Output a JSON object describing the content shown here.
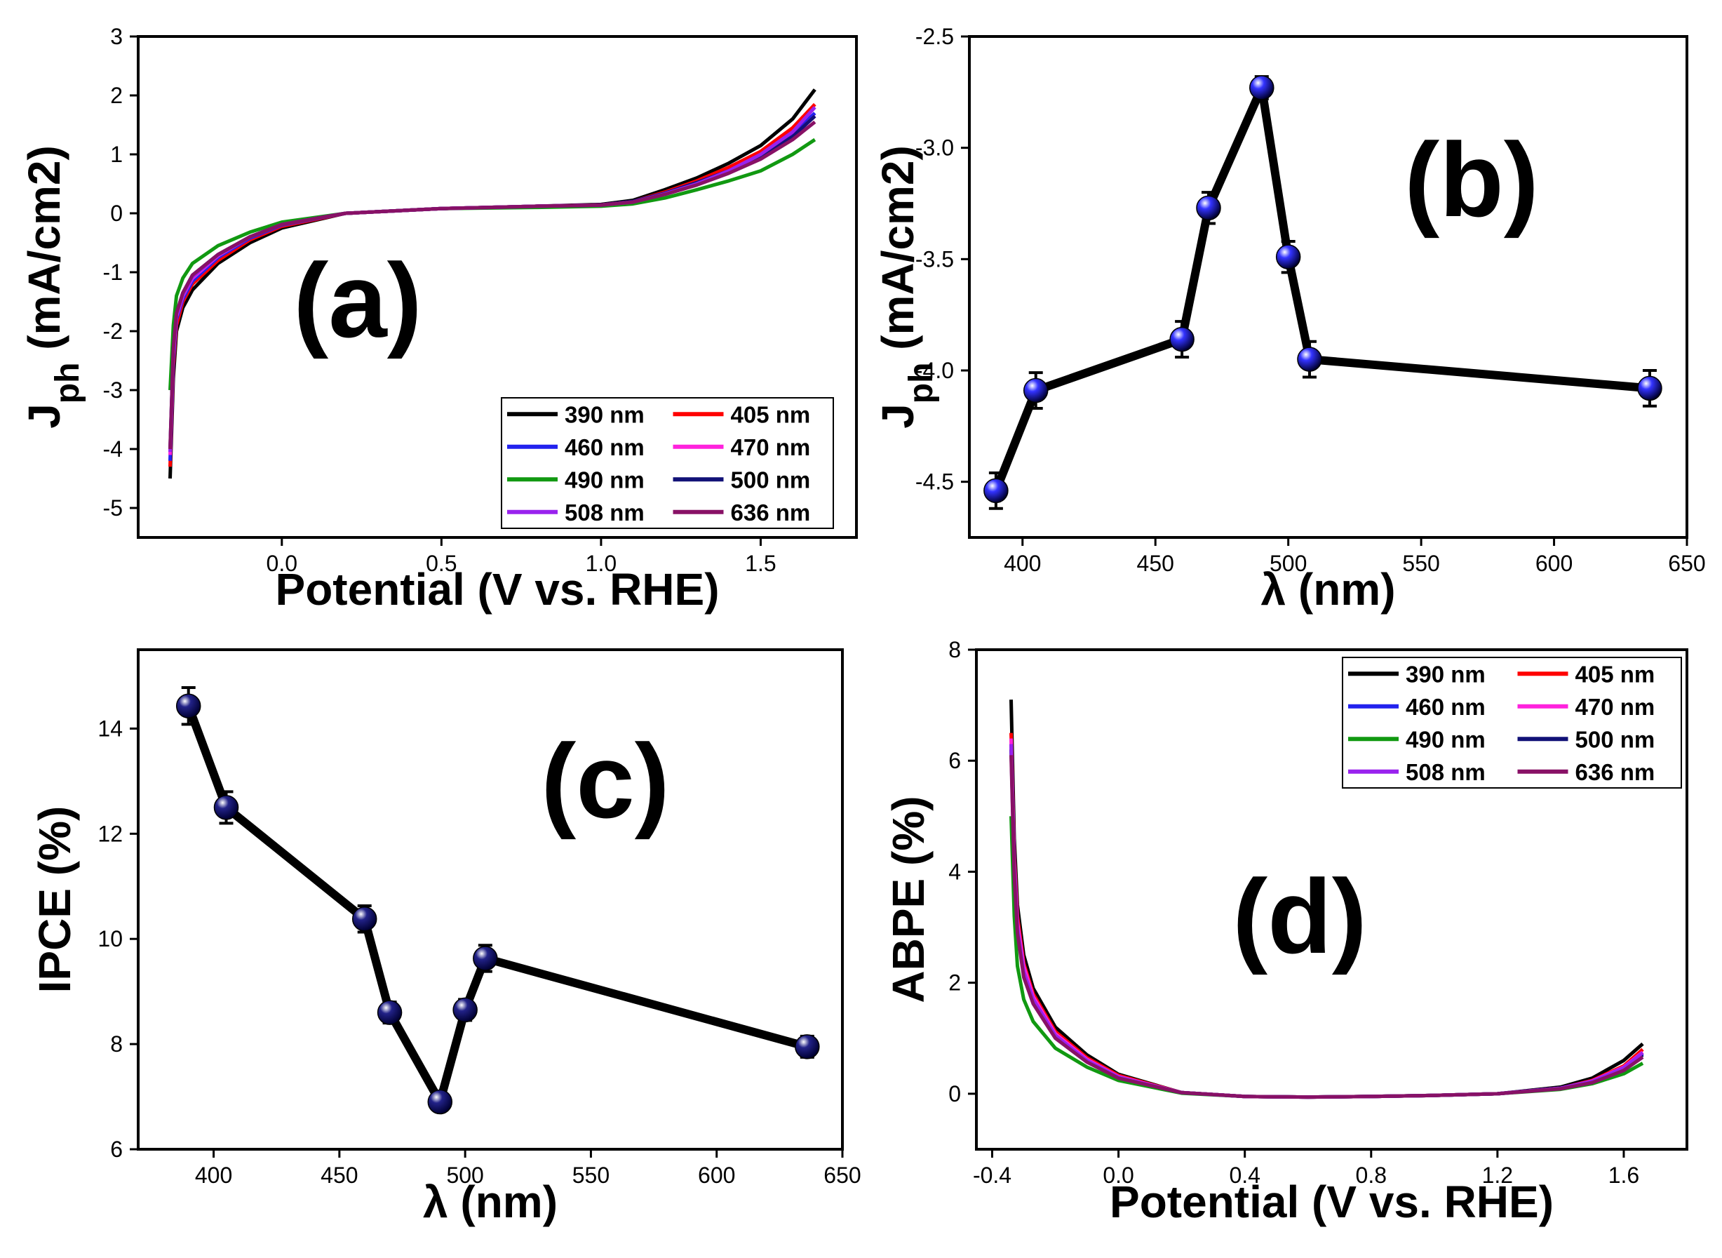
{
  "chart_data": [
    {
      "id": "a",
      "type": "line",
      "panel_label": "(a)",
      "xlabel": "Potential (V vs. RHE)",
      "ylabel_main": "J",
      "ylabel_sub": "ph",
      "ylabel_unit": " (mA/cm2)",
      "xlim": [
        -0.45,
        1.8
      ],
      "ylim": [
        -5.5,
        3
      ],
      "xticks": [
        0.0,
        0.5,
        1.0,
        1.5
      ],
      "xtick_labels": [
        "0.0",
        "0.5",
        "1.0",
        "1.5"
      ],
      "yticks": [
        -5,
        -4,
        -3,
        -2,
        -1,
        0,
        1,
        2,
        3
      ],
      "ytick_labels": [
        "-5",
        "-4",
        "-3",
        "-2",
        "-1",
        "0",
        "1",
        "2",
        "3"
      ],
      "legend_position": "bottom-right",
      "series": [
        {
          "name": "390 nm",
          "color": "#000000",
          "x": [
            -0.35,
            -0.34,
            -0.33,
            -0.31,
            -0.28,
            -0.2,
            -0.1,
            0.0,
            0.2,
            0.5,
            0.8,
            1.0,
            1.1,
            1.2,
            1.3,
            1.4,
            1.5,
            1.6,
            1.67
          ],
          "y": [
            -4.5,
            -2.8,
            -2.0,
            -1.6,
            -1.3,
            -0.85,
            -0.5,
            -0.25,
            0.0,
            0.08,
            0.12,
            0.15,
            0.22,
            0.4,
            0.6,
            0.85,
            1.15,
            1.6,
            2.1
          ]
        },
        {
          "name": "405 nm",
          "color": "#ff0000",
          "x": [
            -0.35,
            -0.34,
            -0.33,
            -0.31,
            -0.28,
            -0.2,
            -0.1,
            0.0,
            0.2,
            0.5,
            0.8,
            1.0,
            1.1,
            1.2,
            1.3,
            1.4,
            1.5,
            1.6,
            1.67
          ],
          "y": [
            -4.3,
            -2.6,
            -1.9,
            -1.5,
            -1.2,
            -0.8,
            -0.45,
            -0.22,
            0.0,
            0.08,
            0.12,
            0.14,
            0.2,
            0.36,
            0.55,
            0.78,
            1.05,
            1.45,
            1.85
          ]
        },
        {
          "name": "460 nm",
          "color": "#2222ee",
          "x": [
            -0.35,
            -0.34,
            -0.33,
            -0.31,
            -0.28,
            -0.2,
            -0.1,
            0.0,
            0.2,
            0.5,
            0.8,
            1.0,
            1.1,
            1.2,
            1.3,
            1.4,
            1.5,
            1.6,
            1.67
          ],
          "y": [
            -4.2,
            -2.5,
            -1.8,
            -1.45,
            -1.15,
            -0.75,
            -0.42,
            -0.2,
            0.0,
            0.08,
            0.12,
            0.14,
            0.2,
            0.34,
            0.52,
            0.72,
            0.98,
            1.35,
            1.7
          ]
        },
        {
          "name": "470 nm",
          "color": "#ff22dd",
          "x": [
            -0.35,
            -0.34,
            -0.33,
            -0.31,
            -0.28,
            -0.2,
            -0.1,
            0.0,
            0.2,
            0.5,
            0.8,
            1.0,
            1.1,
            1.2,
            1.3,
            1.4,
            1.5,
            1.6,
            1.67
          ],
          "y": [
            -4.1,
            -2.4,
            -1.75,
            -1.4,
            -1.1,
            -0.72,
            -0.4,
            -0.19,
            0.0,
            0.08,
            0.12,
            0.14,
            0.19,
            0.33,
            0.5,
            0.7,
            0.95,
            1.3,
            1.65
          ]
        },
        {
          "name": "490 nm",
          "color": "#119911",
          "x": [
            -0.35,
            -0.34,
            -0.33,
            -0.31,
            -0.28,
            -0.2,
            -0.1,
            0.0,
            0.2,
            0.5,
            0.8,
            1.0,
            1.1,
            1.2,
            1.3,
            1.4,
            1.5,
            1.6,
            1.67
          ],
          "y": [
            -3.0,
            -1.9,
            -1.4,
            -1.1,
            -0.85,
            -0.55,
            -0.32,
            -0.15,
            0.0,
            0.08,
            0.1,
            0.12,
            0.16,
            0.26,
            0.4,
            0.55,
            0.72,
            1.0,
            1.25
          ]
        },
        {
          "name": "500 nm",
          "color": "#111177",
          "x": [
            -0.35,
            -0.34,
            -0.33,
            -0.31,
            -0.28,
            -0.2,
            -0.1,
            0.0,
            0.2,
            0.5,
            0.8,
            1.0,
            1.1,
            1.2,
            1.3,
            1.4,
            1.5,
            1.6,
            1.67
          ],
          "y": [
            -4.0,
            -2.3,
            -1.7,
            -1.35,
            -1.05,
            -0.7,
            -0.4,
            -0.19,
            0.0,
            0.08,
            0.12,
            0.14,
            0.2,
            0.34,
            0.52,
            0.72,
            0.98,
            1.3,
            1.65
          ]
        },
        {
          "name": "508 nm",
          "color": "#9922ee",
          "x": [
            -0.35,
            -0.34,
            -0.33,
            -0.31,
            -0.28,
            -0.2,
            -0.1,
            0.0,
            0.2,
            0.5,
            0.8,
            1.0,
            1.1,
            1.2,
            1.3,
            1.4,
            1.5,
            1.6,
            1.67
          ],
          "y": [
            -4.05,
            -2.35,
            -1.72,
            -1.38,
            -1.08,
            -0.71,
            -0.4,
            -0.19,
            0.0,
            0.08,
            0.12,
            0.14,
            0.19,
            0.33,
            0.5,
            0.72,
            1.0,
            1.38,
            1.8
          ]
        },
        {
          "name": "636 nm",
          "color": "#881166",
          "x": [
            -0.35,
            -0.34,
            -0.33,
            -0.31,
            -0.28,
            -0.2,
            -0.1,
            0.0,
            0.2,
            0.5,
            0.8,
            1.0,
            1.1,
            1.2,
            1.3,
            1.4,
            1.5,
            1.6,
            1.67
          ],
          "y": [
            -4.0,
            -2.3,
            -1.7,
            -1.35,
            -1.05,
            -0.7,
            -0.4,
            -0.19,
            0.0,
            0.08,
            0.12,
            0.14,
            0.19,
            0.32,
            0.48,
            0.68,
            0.92,
            1.25,
            1.55
          ]
        }
      ]
    },
    {
      "id": "b",
      "type": "line",
      "panel_label": "(b)",
      "xlabel": "λ (nm)",
      "ylabel_main": "J",
      "ylabel_sub": "ph",
      "ylabel_unit": " (mA/cm2)",
      "xlim": [
        380,
        650
      ],
      "ylim": [
        -4.75,
        -2.5
      ],
      "xticks": [
        400,
        450,
        500,
        550,
        600,
        650
      ],
      "xtick_labels": [
        "400",
        "450",
        "500",
        "550",
        "600",
        "650"
      ],
      "yticks": [
        -4.5,
        -4.0,
        -3.5,
        -3.0,
        -2.5
      ],
      "ytick_labels": [
        "-4.5",
        "-4.0",
        "-3.5",
        "-3.0",
        "-2.5"
      ],
      "marker_color": "#3333ff",
      "series": [
        {
          "name": "Jph",
          "x": [
            390,
            405,
            460,
            470,
            490,
            500,
            508,
            636
          ],
          "y": [
            -4.54,
            -4.09,
            -3.86,
            -3.27,
            -2.73,
            -3.49,
            -3.95,
            -4.08
          ],
          "err": [
            0.08,
            0.08,
            0.08,
            0.07,
            0.05,
            0.07,
            0.08,
            0.08
          ]
        }
      ]
    },
    {
      "id": "c",
      "type": "line",
      "panel_label": "(c)",
      "xlabel": "λ (nm)",
      "ylabel": "IPCE (%)",
      "xlim": [
        370,
        650
      ],
      "ylim": [
        6,
        15.5
      ],
      "xticks": [
        400,
        450,
        500,
        550,
        600,
        650
      ],
      "xtick_labels": [
        "400",
        "450",
        "500",
        "550",
        "600",
        "650"
      ],
      "yticks": [
        6,
        8,
        10,
        12,
        14
      ],
      "ytick_labels": [
        "6",
        "8",
        "10",
        "12",
        "14"
      ],
      "marker_color": "#222288",
      "series": [
        {
          "name": "IPCE",
          "x": [
            390,
            405,
            460,
            470,
            490,
            500,
            508,
            636
          ],
          "y": [
            14.43,
            12.5,
            10.38,
            8.6,
            6.9,
            8.65,
            9.63,
            7.95
          ],
          "err": [
            0.35,
            0.3,
            0.25,
            0.2,
            0.12,
            0.2,
            0.25,
            0.2
          ]
        }
      ]
    },
    {
      "id": "d",
      "type": "line",
      "panel_label": "(d)",
      "xlabel": "Potential (V vs. RHE)",
      "ylabel": "ABPE (%)",
      "xlim": [
        -0.45,
        1.8
      ],
      "ylim": [
        -1,
        8
      ],
      "xticks": [
        -0.4,
        0.0,
        0.4,
        0.8,
        1.2,
        1.6
      ],
      "xtick_labels": [
        "-0.4",
        "0.0",
        "0.4",
        "0.8",
        "1.2",
        "1.6"
      ],
      "yticks": [
        0,
        2,
        4,
        6,
        8
      ],
      "ytick_labels": [
        "0",
        "2",
        "4",
        "6",
        "8"
      ],
      "legend_position": "top-right",
      "series": [
        {
          "name": "390 nm",
          "color": "#000000",
          "x": [
            -0.34,
            -0.33,
            -0.32,
            -0.3,
            -0.27,
            -0.2,
            -0.1,
            0.0,
            0.2,
            0.4,
            0.6,
            0.8,
            1.0,
            1.2,
            1.4,
            1.5,
            1.6,
            1.66
          ],
          "y": [
            7.1,
            4.6,
            3.4,
            2.5,
            1.9,
            1.2,
            0.7,
            0.35,
            0.02,
            -0.05,
            -0.06,
            -0.05,
            -0.03,
            0.0,
            0.12,
            0.28,
            0.6,
            0.9
          ]
        },
        {
          "name": "405 nm",
          "color": "#ff0000",
          "x": [
            -0.34,
            -0.33,
            -0.32,
            -0.3,
            -0.27,
            -0.2,
            -0.1,
            0.0,
            0.2,
            0.4,
            0.6,
            0.8,
            1.0,
            1.2,
            1.4,
            1.5,
            1.6,
            1.66
          ],
          "y": [
            6.5,
            4.3,
            3.2,
            2.35,
            1.8,
            1.12,
            0.65,
            0.33,
            0.02,
            -0.05,
            -0.06,
            -0.05,
            -0.03,
            0.0,
            0.1,
            0.24,
            0.5,
            0.8
          ]
        },
        {
          "name": "460 nm",
          "color": "#2222ee",
          "x": [
            -0.34,
            -0.33,
            -0.32,
            -0.3,
            -0.27,
            -0.2,
            -0.1,
            0.0,
            0.2,
            0.4,
            0.6,
            0.8,
            1.0,
            1.2,
            1.4,
            1.5,
            1.6,
            1.66
          ],
          "y": [
            6.3,
            4.1,
            3.0,
            2.2,
            1.7,
            1.05,
            0.6,
            0.3,
            0.02,
            -0.05,
            -0.06,
            -0.05,
            -0.03,
            0.0,
            0.1,
            0.22,
            0.46,
            0.72
          ]
        },
        {
          "name": "470 nm",
          "color": "#ff22dd",
          "x": [
            -0.34,
            -0.33,
            -0.32,
            -0.3,
            -0.27,
            -0.2,
            -0.1,
            0.0,
            0.2,
            0.4,
            0.6,
            0.8,
            1.0,
            1.2,
            1.4,
            1.5,
            1.6,
            1.66
          ],
          "y": [
            6.4,
            4.2,
            3.1,
            2.3,
            1.75,
            1.08,
            0.62,
            0.31,
            0.02,
            -0.05,
            -0.06,
            -0.05,
            -0.03,
            0.0,
            0.1,
            0.23,
            0.48,
            0.75
          ]
        },
        {
          "name": "490 nm",
          "color": "#119911",
          "x": [
            -0.34,
            -0.33,
            -0.32,
            -0.3,
            -0.27,
            -0.2,
            -0.1,
            0.0,
            0.2,
            0.4,
            0.6,
            0.8,
            1.0,
            1.2,
            1.4,
            1.5,
            1.6,
            1.66
          ],
          "y": [
            5.0,
            3.2,
            2.3,
            1.7,
            1.3,
            0.82,
            0.48,
            0.24,
            0.01,
            -0.05,
            -0.06,
            -0.05,
            -0.03,
            0.0,
            0.08,
            0.18,
            0.36,
            0.55
          ]
        },
        {
          "name": "500 nm",
          "color": "#111177",
          "x": [
            -0.34,
            -0.33,
            -0.32,
            -0.3,
            -0.27,
            -0.2,
            -0.1,
            0.0,
            0.2,
            0.4,
            0.6,
            0.8,
            1.0,
            1.2,
            1.4,
            1.5,
            1.6,
            1.66
          ],
          "y": [
            6.2,
            4.0,
            2.95,
            2.15,
            1.65,
            1.02,
            0.58,
            0.29,
            0.02,
            -0.05,
            -0.06,
            -0.05,
            -0.03,
            0.0,
            0.1,
            0.22,
            0.45,
            0.7
          ]
        },
        {
          "name": "508 nm",
          "color": "#9922ee",
          "x": [
            -0.34,
            -0.33,
            -0.32,
            -0.3,
            -0.27,
            -0.2,
            -0.1,
            0.0,
            0.2,
            0.4,
            0.6,
            0.8,
            1.0,
            1.2,
            1.4,
            1.5,
            1.6,
            1.66
          ],
          "y": [
            6.3,
            4.1,
            3.0,
            2.2,
            1.7,
            1.05,
            0.6,
            0.3,
            0.02,
            -0.05,
            -0.06,
            -0.05,
            -0.03,
            0.0,
            0.1,
            0.22,
            0.47,
            0.74
          ]
        },
        {
          "name": "636 nm",
          "color": "#881166",
          "x": [
            -0.34,
            -0.33,
            -0.32,
            -0.3,
            -0.27,
            -0.2,
            -0.1,
            0.0,
            0.2,
            0.4,
            0.6,
            0.8,
            1.0,
            1.2,
            1.4,
            1.5,
            1.6,
            1.66
          ],
          "y": [
            6.1,
            3.95,
            2.9,
            2.1,
            1.62,
            1.0,
            0.57,
            0.28,
            0.02,
            -0.05,
            -0.06,
            -0.05,
            -0.03,
            0.0,
            0.09,
            0.2,
            0.42,
            0.66
          ]
        }
      ]
    }
  ]
}
